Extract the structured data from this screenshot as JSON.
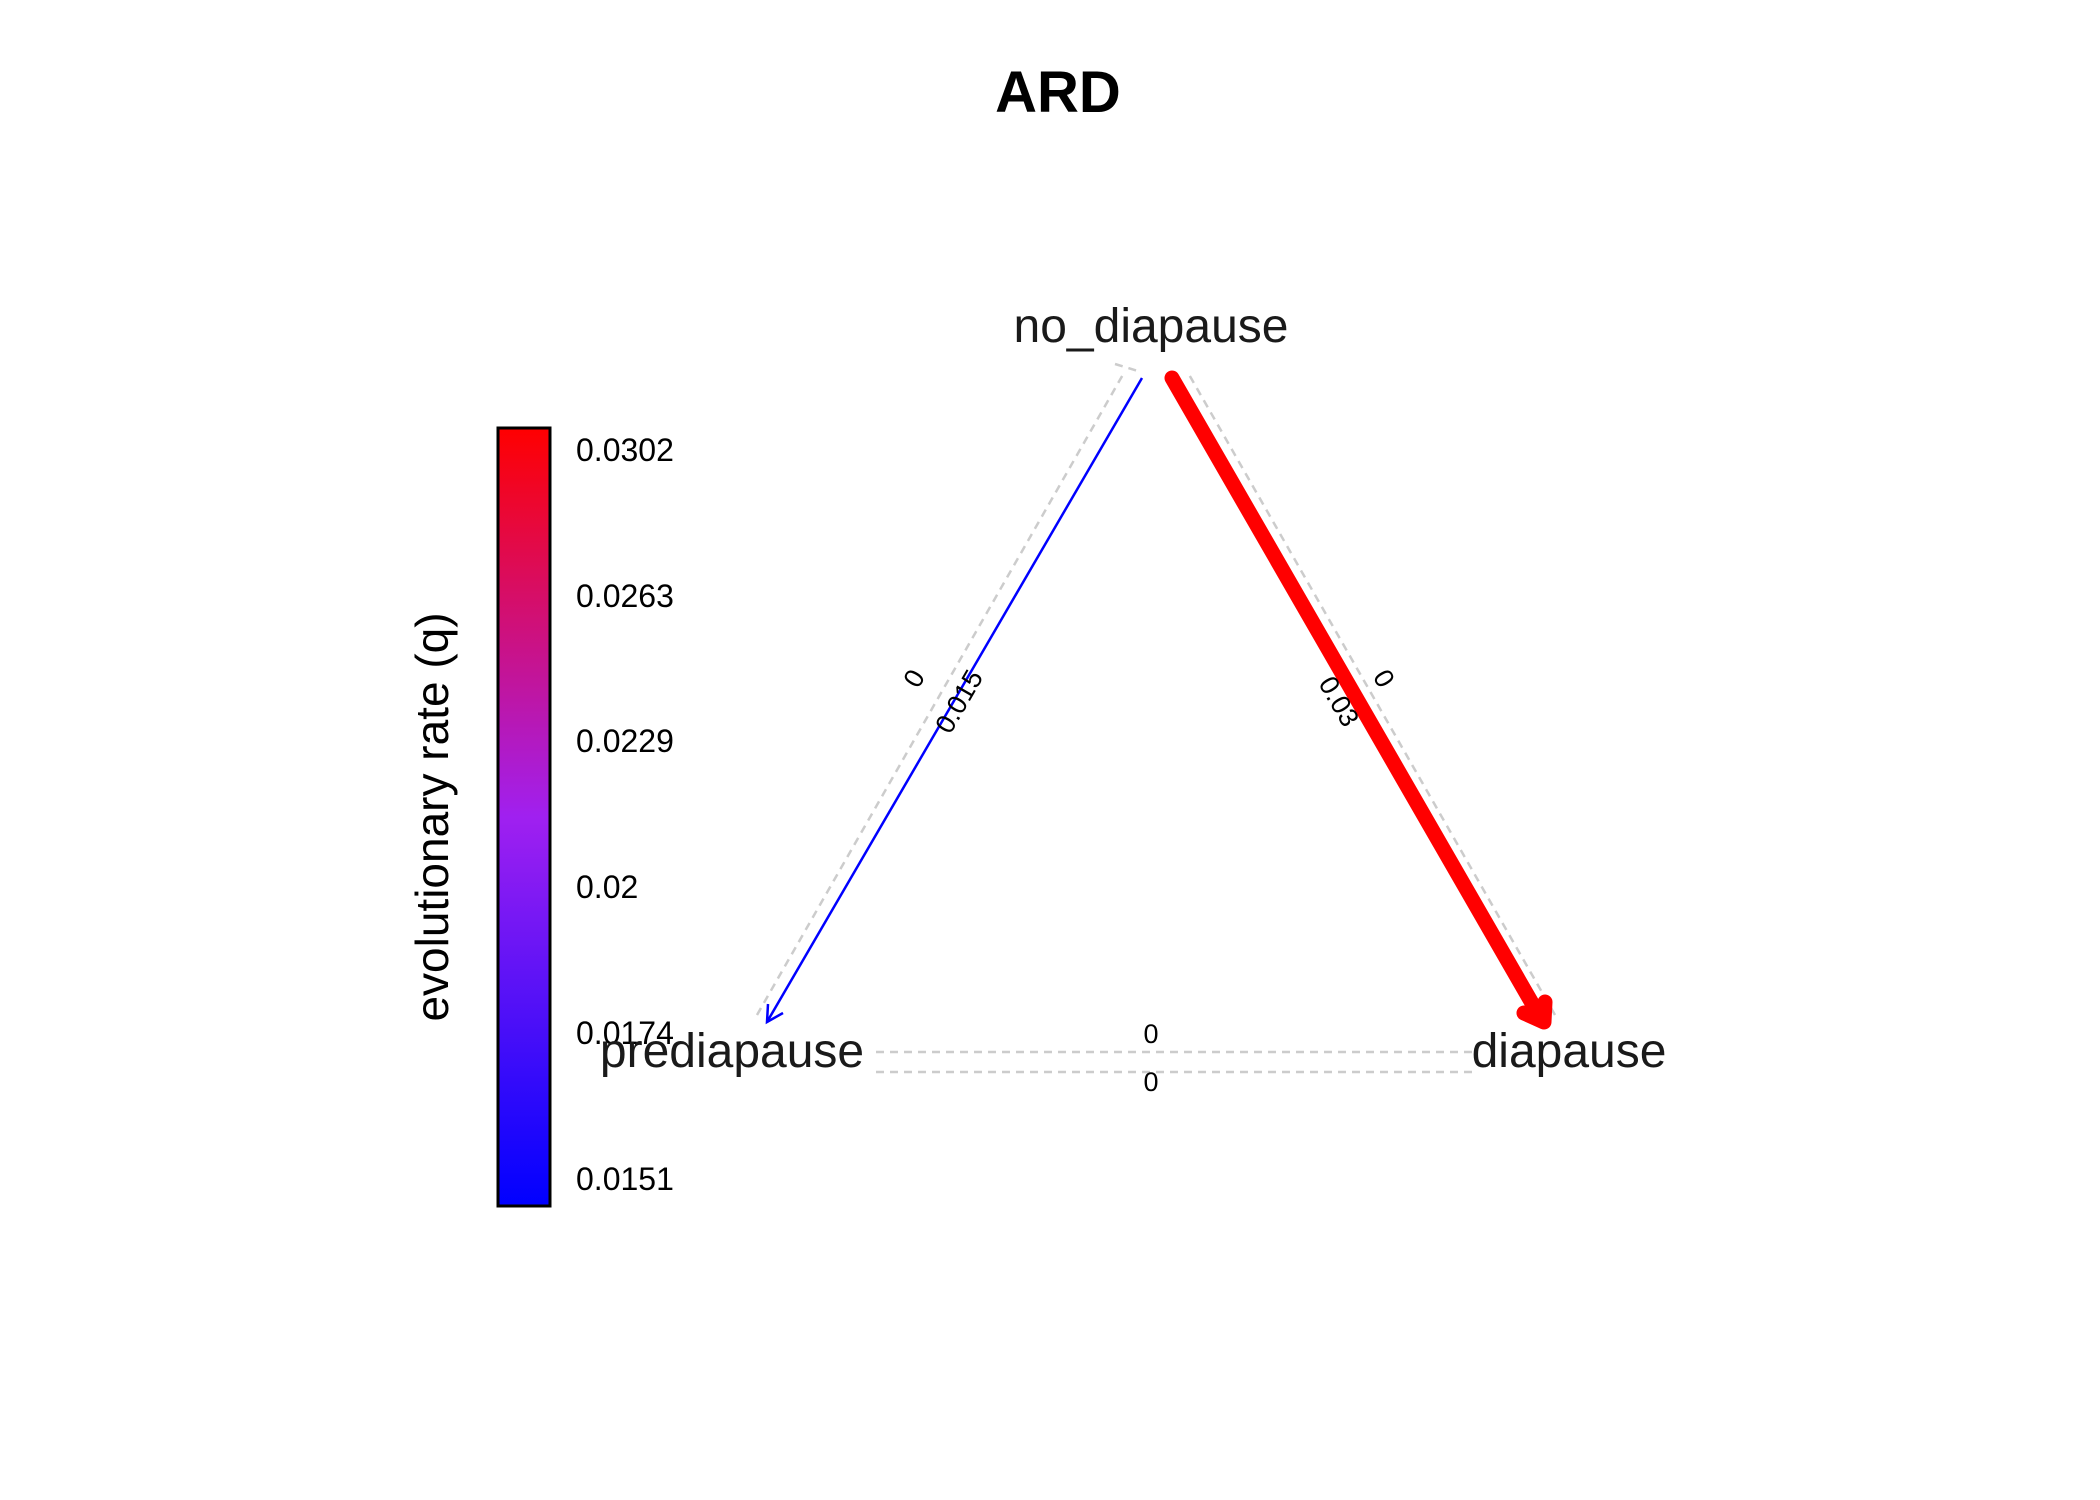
{
  "title": "ARD",
  "colors": {
    "low": "#0000ff",
    "mid": "#a020f0",
    "high": "#ff0000",
    "zero_edge": "#cccccc"
  },
  "legend": {
    "title": "evolutionary rate (q)",
    "ticks": [
      "0.0302",
      "0.0263",
      "0.0229",
      "0.02",
      "0.0174",
      "0.0151"
    ]
  },
  "nodes": {
    "no_diapause": "no_diapause",
    "prediapause": "prediapause",
    "diapause": "diapause"
  },
  "edges": [
    {
      "from": "no_diapause",
      "to": "prediapause",
      "rate": 0.015,
      "label": "0.015",
      "style": "solid",
      "color": "#0000ff"
    },
    {
      "from": "prediapause",
      "to": "no_diapause",
      "rate": 0,
      "label": "0",
      "style": "dashed",
      "color": "#cccccc"
    },
    {
      "from": "no_diapause",
      "to": "diapause",
      "rate": 0.03,
      "label": "0.03",
      "style": "solid",
      "color": "#ff0000"
    },
    {
      "from": "diapause",
      "to": "no_diapause",
      "rate": 0,
      "label": "0",
      "style": "dashed",
      "color": "#cccccc"
    },
    {
      "from": "prediapause",
      "to": "diapause",
      "rate": 0,
      "label": "0",
      "style": "dashed",
      "color": "#cccccc"
    },
    {
      "from": "diapause",
      "to": "prediapause",
      "rate": 0,
      "label": "0",
      "style": "dashed",
      "color": "#cccccc"
    }
  ]
}
